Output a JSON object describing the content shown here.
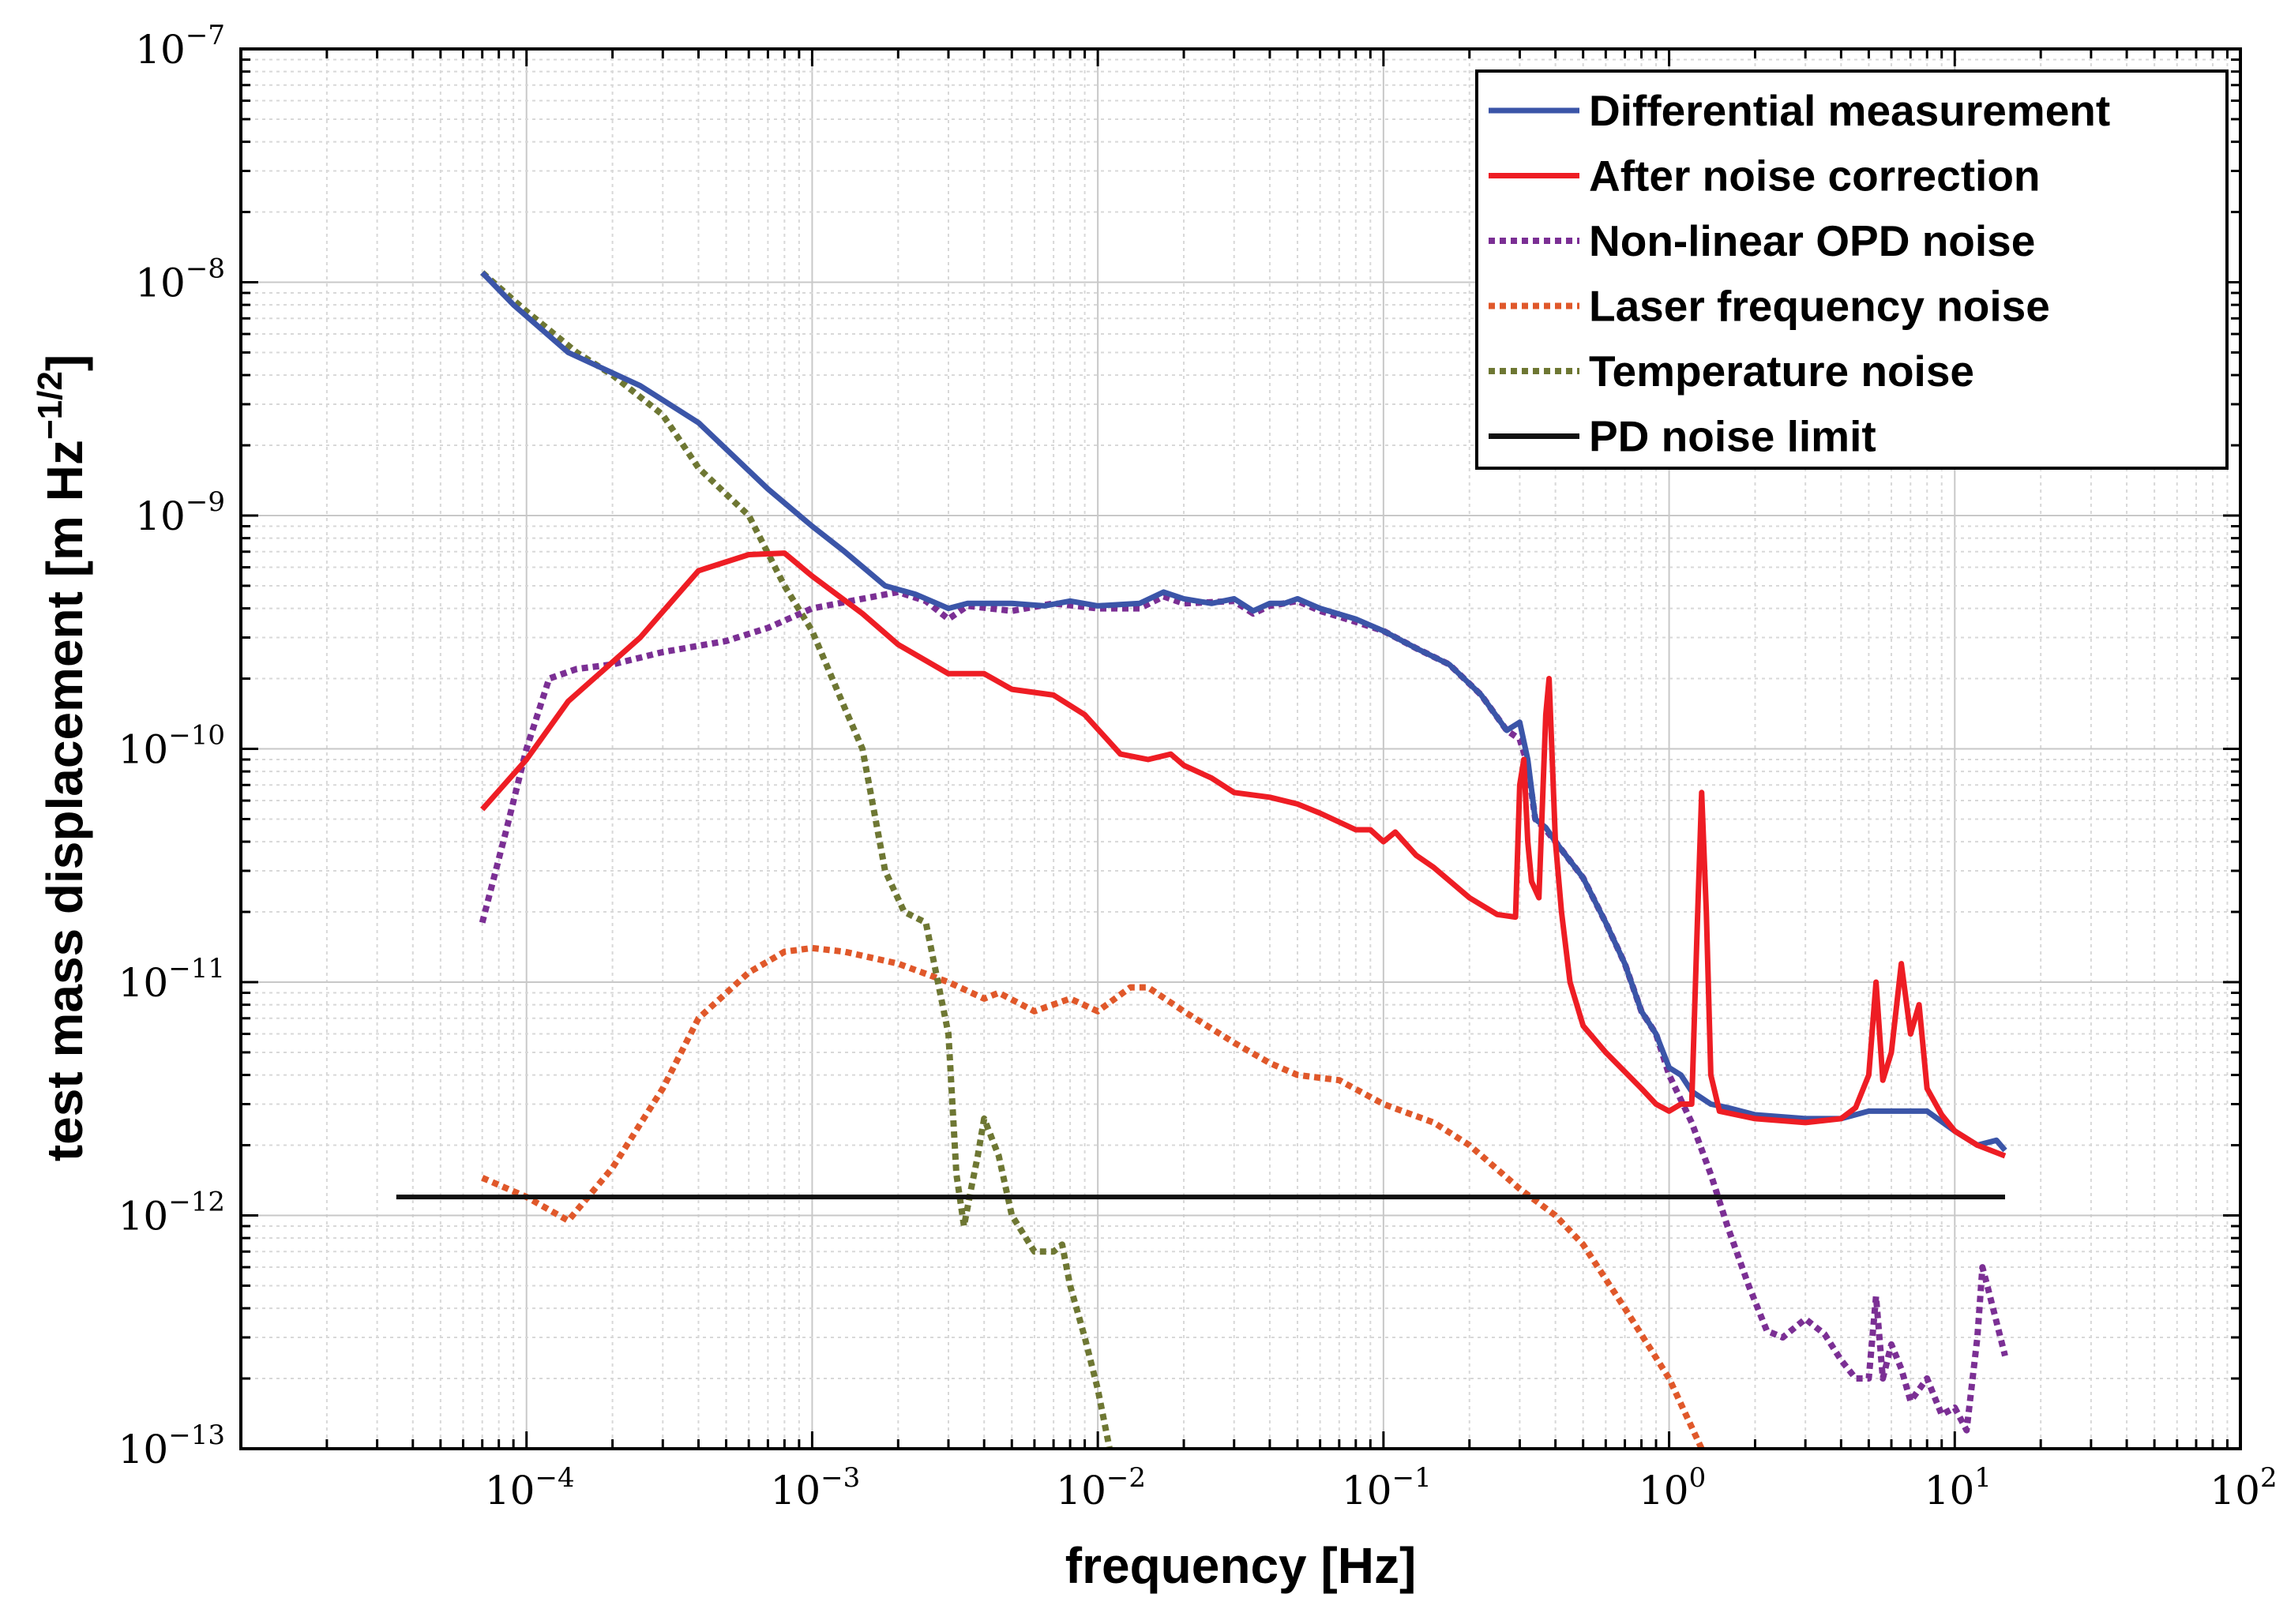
{
  "chart_data": {
    "type": "line",
    "title": "",
    "xlabel": "frequency [Hz]",
    "ylabel_main": "test mass displacement [m Hz",
    "ylabel_exp": "−1/2",
    "ylabel_close": "]",
    "xscale": "log",
    "yscale": "log",
    "xlim": [
      1e-05,
      100
    ],
    "ylim": [
      1e-13,
      1e-07
    ],
    "grid": true,
    "legend_position": "top-right",
    "x_ticks": [
      {
        "value": 0.0001,
        "base": "10",
        "exp": "−4"
      },
      {
        "value": 0.001,
        "base": "10",
        "exp": "−3"
      },
      {
        "value": 0.01,
        "base": "10",
        "exp": "−2"
      },
      {
        "value": 0.1,
        "base": "10",
        "exp": "−1"
      },
      {
        "value": 1,
        "base": "10",
        "exp": "0"
      },
      {
        "value": 10,
        "base": "10",
        "exp": "1"
      },
      {
        "value": 100,
        "base": "10",
        "exp": "2"
      }
    ],
    "y_ticks": [
      {
        "value": 1e-13,
        "base": "10",
        "exp": "−13"
      },
      {
        "value": 1e-12,
        "base": "10",
        "exp": "−12"
      },
      {
        "value": 1e-11,
        "base": "10",
        "exp": "−11"
      },
      {
        "value": 1e-10,
        "base": "10",
        "exp": "−10"
      },
      {
        "value": 1e-09,
        "base": "10",
        "exp": "−9"
      },
      {
        "value": 1e-08,
        "base": "10",
        "exp": "−8"
      },
      {
        "value": 1e-07,
        "base": "10",
        "exp": "−7"
      }
    ],
    "series": [
      {
        "name": "Differential measurement",
        "color": "#3b55a8",
        "style": "solid",
        "points": [
          [
            7e-05,
            1.1e-08
          ],
          [
            9e-05,
            8e-09
          ],
          [
            0.00014,
            5e-09
          ],
          [
            0.00025,
            3.6e-09
          ],
          [
            0.0004,
            2.5e-09
          ],
          [
            0.0007,
            1.3e-09
          ],
          [
            0.001,
            9e-10
          ],
          [
            0.0013,
            7e-10
          ],
          [
            0.0018,
            5e-10
          ],
          [
            0.0023,
            4.6e-10
          ],
          [
            0.003,
            4e-10
          ],
          [
            0.0035,
            4.2e-10
          ],
          [
            0.005,
            4.2e-10
          ],
          [
            0.0065,
            4.1e-10
          ],
          [
            0.008,
            4.3e-10
          ],
          [
            0.01,
            4.1e-10
          ],
          [
            0.014,
            4.2e-10
          ],
          [
            0.017,
            4.7e-10
          ],
          [
            0.02,
            4.4e-10
          ],
          [
            0.025,
            4.2e-10
          ],
          [
            0.03,
            4.4e-10
          ],
          [
            0.035,
            3.9e-10
          ],
          [
            0.04,
            4.2e-10
          ],
          [
            0.045,
            4.2e-10
          ],
          [
            0.05,
            4.4e-10
          ],
          [
            0.06,
            4e-10
          ],
          [
            0.08,
            3.6e-10
          ],
          [
            0.1,
            3.2e-10
          ],
          [
            0.13,
            2.7e-10
          ],
          [
            0.17,
            2.3e-10
          ],
          [
            0.22,
            1.7e-10
          ],
          [
            0.27,
            1.2e-10
          ],
          [
            0.3,
            1.3e-10
          ],
          [
            0.32,
            9e-11
          ],
          [
            0.34,
            5e-11
          ],
          [
            0.37,
            4.6e-11
          ],
          [
            0.4,
            4e-11
          ],
          [
            0.5,
            2.8e-11
          ],
          [
            0.6,
            1.8e-11
          ],
          [
            0.7,
            1.2e-11
          ],
          [
            0.8,
            7.5e-12
          ],
          [
            0.9,
            6e-12
          ],
          [
            1,
            4.3e-12
          ],
          [
            1.1,
            4e-12
          ],
          [
            1.2,
            3.4e-12
          ],
          [
            1.4,
            3e-12
          ],
          [
            1.6,
            2.9e-12
          ],
          [
            2,
            2.7e-12
          ],
          [
            3,
            2.6e-12
          ],
          [
            4,
            2.6e-12
          ],
          [
            5,
            2.8e-12
          ],
          [
            8,
            2.8e-12
          ],
          [
            10,
            2.3e-12
          ],
          [
            12,
            2e-12
          ],
          [
            14,
            2.1e-12
          ],
          [
            15,
            1.9e-12
          ]
        ]
      },
      {
        "name": "After noise correction",
        "color": "#ee1d24",
        "style": "solid",
        "points": [
          [
            7e-05,
            5.5e-11
          ],
          [
            0.0001,
            9e-11
          ],
          [
            0.00014,
            1.6e-10
          ],
          [
            0.00025,
            3e-10
          ],
          [
            0.0004,
            5.8e-10
          ],
          [
            0.0006,
            6.8e-10
          ],
          [
            0.0008,
            6.9e-10
          ],
          [
            0.001,
            5.5e-10
          ],
          [
            0.0015,
            3.8e-10
          ],
          [
            0.002,
            2.8e-10
          ],
          [
            0.003,
            2.1e-10
          ],
          [
            0.004,
            2.1e-10
          ],
          [
            0.005,
            1.8e-10
          ],
          [
            0.007,
            1.7e-10
          ],
          [
            0.009,
            1.4e-10
          ],
          [
            0.012,
            9.5e-11
          ],
          [
            0.015,
            9e-11
          ],
          [
            0.018,
            9.5e-11
          ],
          [
            0.02,
            8.5e-11
          ],
          [
            0.025,
            7.5e-11
          ],
          [
            0.03,
            6.5e-11
          ],
          [
            0.04,
            6.2e-11
          ],
          [
            0.05,
            5.8e-11
          ],
          [
            0.06,
            5.3e-11
          ],
          [
            0.08,
            4.5e-11
          ],
          [
            0.09,
            4.5e-11
          ],
          [
            0.1,
            4e-11
          ],
          [
            0.11,
            4.4e-11
          ],
          [
            0.13,
            3.5e-11
          ],
          [
            0.15,
            3.1e-11
          ],
          [
            0.2,
            2.3e-11
          ],
          [
            0.25,
            1.95e-11
          ],
          [
            0.29,
            1.9e-11
          ],
          [
            0.3,
            7e-11
          ],
          [
            0.31,
            9e-11
          ],
          [
            0.32,
            4e-11
          ],
          [
            0.33,
            2.7e-11
          ],
          [
            0.35,
            2.3e-11
          ],
          [
            0.37,
            1.4e-10
          ],
          [
            0.38,
            2e-10
          ],
          [
            0.4,
            4e-11
          ],
          [
            0.42,
            2e-11
          ],
          [
            0.45,
            1e-11
          ],
          [
            0.5,
            6.5e-12
          ],
          [
            0.6,
            5e-12
          ],
          [
            0.8,
            3.5e-12
          ],
          [
            0.9,
            3e-12
          ],
          [
            1,
            2.8e-12
          ],
          [
            1.1,
            3e-12
          ],
          [
            1.2,
            3e-12
          ],
          [
            1.25,
            1.5e-11
          ],
          [
            1.3,
            6.5e-11
          ],
          [
            1.35,
            2e-11
          ],
          [
            1.4,
            4e-12
          ],
          [
            1.5,
            2.8e-12
          ],
          [
            2,
            2.6e-12
          ],
          [
            3,
            2.5e-12
          ],
          [
            4,
            2.6e-12
          ],
          [
            4.5,
            2.9e-12
          ],
          [
            5,
            4e-12
          ],
          [
            5.3,
            1e-11
          ],
          [
            5.6,
            3.8e-12
          ],
          [
            6,
            5e-12
          ],
          [
            6.5,
            1.2e-11
          ],
          [
            7,
            6e-12
          ],
          [
            7.5,
            8e-12
          ],
          [
            8,
            3.5e-12
          ],
          [
            9,
            2.7e-12
          ],
          [
            10,
            2.3e-12
          ],
          [
            12,
            2e-12
          ],
          [
            15,
            1.8e-12
          ]
        ]
      },
      {
        "name": "Non-linear OPD noise",
        "color": "#7b2f94",
        "style": "dotted",
        "points": [
          [
            7e-05,
            1.8e-11
          ],
          [
            8.5e-05,
            4.5e-11
          ],
          [
            0.0001,
            1e-10
          ],
          [
            0.00012,
            2e-10
          ],
          [
            0.00015,
            2.2e-10
          ],
          [
            0.0002,
            2.3e-10
          ],
          [
            0.0003,
            2.6e-10
          ],
          [
            0.0005,
            2.9e-10
          ],
          [
            0.0007,
            3.3e-10
          ],
          [
            0.001,
            4e-10
          ],
          [
            0.0015,
            4.4e-10
          ],
          [
            0.002,
            4.7e-10
          ],
          [
            0.0025,
            4.3e-10
          ],
          [
            0.003,
            3.6e-10
          ],
          [
            0.0035,
            4.1e-10
          ],
          [
            0.005,
            3.9e-10
          ],
          [
            0.007,
            4.2e-10
          ],
          [
            0.01,
            4e-10
          ],
          [
            0.014,
            4e-10
          ],
          [
            0.017,
            4.5e-10
          ],
          [
            0.02,
            4.2e-10
          ],
          [
            0.03,
            4.3e-10
          ],
          [
            0.035,
            3.8e-10
          ],
          [
            0.04,
            4.1e-10
          ],
          [
            0.05,
            4.3e-10
          ],
          [
            0.06,
            3.9e-10
          ],
          [
            0.08,
            3.5e-10
          ],
          [
            0.1,
            3.2e-10
          ],
          [
            0.13,
            2.7e-10
          ],
          [
            0.17,
            2.3e-10
          ],
          [
            0.22,
            1.7e-10
          ],
          [
            0.27,
            1.2e-10
          ],
          [
            0.3,
            1.1e-10
          ],
          [
            0.32,
            8.5e-11
          ],
          [
            0.34,
            5e-11
          ],
          [
            0.37,
            4.5e-11
          ],
          [
            0.4,
            4e-11
          ],
          [
            0.5,
            2.8e-11
          ],
          [
            0.6,
            1.8e-11
          ],
          [
            0.7,
            1.2e-11
          ],
          [
            0.8,
            7.5e-12
          ],
          [
            0.9,
            6e-12
          ],
          [
            1,
            4e-12
          ],
          [
            1.2,
            2.5e-12
          ],
          [
            1.4,
            1.5e-12
          ],
          [
            1.6,
            9e-13
          ],
          [
            1.9,
            5e-13
          ],
          [
            2.2,
            3.2e-13
          ],
          [
            2.5,
            3e-13
          ],
          [
            3,
            3.6e-13
          ],
          [
            3.5,
            3.1e-13
          ],
          [
            4,
            2.4e-13
          ],
          [
            4.5,
            2e-13
          ],
          [
            5,
            2e-13
          ],
          [
            5.3,
            4.5e-13
          ],
          [
            5.6,
            2e-13
          ],
          [
            6,
            2.8e-13
          ],
          [
            6.5,
            2.2e-13
          ],
          [
            7,
            1.6e-13
          ],
          [
            8,
            2e-13
          ],
          [
            9,
            1.4e-13
          ],
          [
            10,
            1.5e-13
          ],
          [
            11,
            1.2e-13
          ],
          [
            12,
            3e-13
          ],
          [
            12.5,
            6e-13
          ],
          [
            13,
            5e-13
          ],
          [
            14,
            3.5e-13
          ],
          [
            15,
            2.5e-13
          ]
        ]
      },
      {
        "name": "Laser frequency noise",
        "color": "#e0582a",
        "style": "dotted",
        "points": [
          [
            7e-05,
            1.45e-12
          ],
          [
            0.0001,
            1.2e-12
          ],
          [
            0.00014,
            9.5e-13
          ],
          [
            0.0002,
            1.6e-12
          ],
          [
            0.0003,
            3.5e-12
          ],
          [
            0.0004,
            7e-12
          ],
          [
            0.0006,
            1.1e-11
          ],
          [
            0.0008,
            1.35e-11
          ],
          [
            0.001,
            1.4e-11
          ],
          [
            0.0013,
            1.35e-11
          ],
          [
            0.002,
            1.2e-11
          ],
          [
            0.003,
            1e-11
          ],
          [
            0.004,
            8.5e-12
          ],
          [
            0.0045,
            9e-12
          ],
          [
            0.006,
            7.5e-12
          ],
          [
            0.008,
            8.5e-12
          ],
          [
            0.01,
            7.5e-12
          ],
          [
            0.013,
            9.5e-12
          ],
          [
            0.015,
            9.5e-12
          ],
          [
            0.02,
            7.5e-12
          ],
          [
            0.03,
            5.5e-12
          ],
          [
            0.04,
            4.5e-12
          ],
          [
            0.05,
            4e-12
          ],
          [
            0.07,
            3.8e-12
          ],
          [
            0.1,
            3e-12
          ],
          [
            0.15,
            2.5e-12
          ],
          [
            0.2,
            2e-12
          ],
          [
            0.3,
            1.3e-12
          ],
          [
            0.4,
            1e-12
          ],
          [
            0.5,
            7.5e-13
          ],
          [
            0.7,
            4e-13
          ],
          [
            1,
            2e-13
          ],
          [
            1.3,
            1e-13
          ]
        ]
      },
      {
        "name": "Temperature noise",
        "color": "#6e7733",
        "style": "dotted",
        "points": [
          [
            7e-05,
            1.1e-08
          ],
          [
            0.0001,
            7.5e-09
          ],
          [
            0.00015,
            5e-09
          ],
          [
            0.0002,
            4e-09
          ],
          [
            0.0003,
            2.7e-09
          ],
          [
            0.0004,
            1.6e-09
          ],
          [
            0.0006,
            1e-09
          ],
          [
            0.0008,
            5e-10
          ],
          [
            0.001,
            3.2e-10
          ],
          [
            0.0013,
            1.5e-10
          ],
          [
            0.0015,
            1e-10
          ],
          [
            0.0018,
            3e-11
          ],
          [
            0.0021,
            2e-11
          ],
          [
            0.0025,
            1.8e-11
          ],
          [
            0.003,
            6e-12
          ],
          [
            0.0032,
            1.5e-12
          ],
          [
            0.0034,
            9e-13
          ],
          [
            0.0036,
            1.3e-12
          ],
          [
            0.0038,
            1.8e-12
          ],
          [
            0.004,
            2.6e-12
          ],
          [
            0.0045,
            1.8e-12
          ],
          [
            0.005,
            1e-12
          ],
          [
            0.006,
            7e-13
          ],
          [
            0.007,
            7e-13
          ],
          [
            0.0075,
            7.5e-13
          ],
          [
            0.008,
            5e-13
          ],
          [
            0.009,
            3e-13
          ],
          [
            0.01,
            1.8e-13
          ],
          [
            0.011,
            1e-13
          ]
        ]
      },
      {
        "name": "PD noise limit",
        "color": "#111111",
        "style": "solid",
        "points": [
          [
            3.5e-05,
            1.2e-12
          ],
          [
            15,
            1.2e-12
          ]
        ]
      }
    ]
  }
}
